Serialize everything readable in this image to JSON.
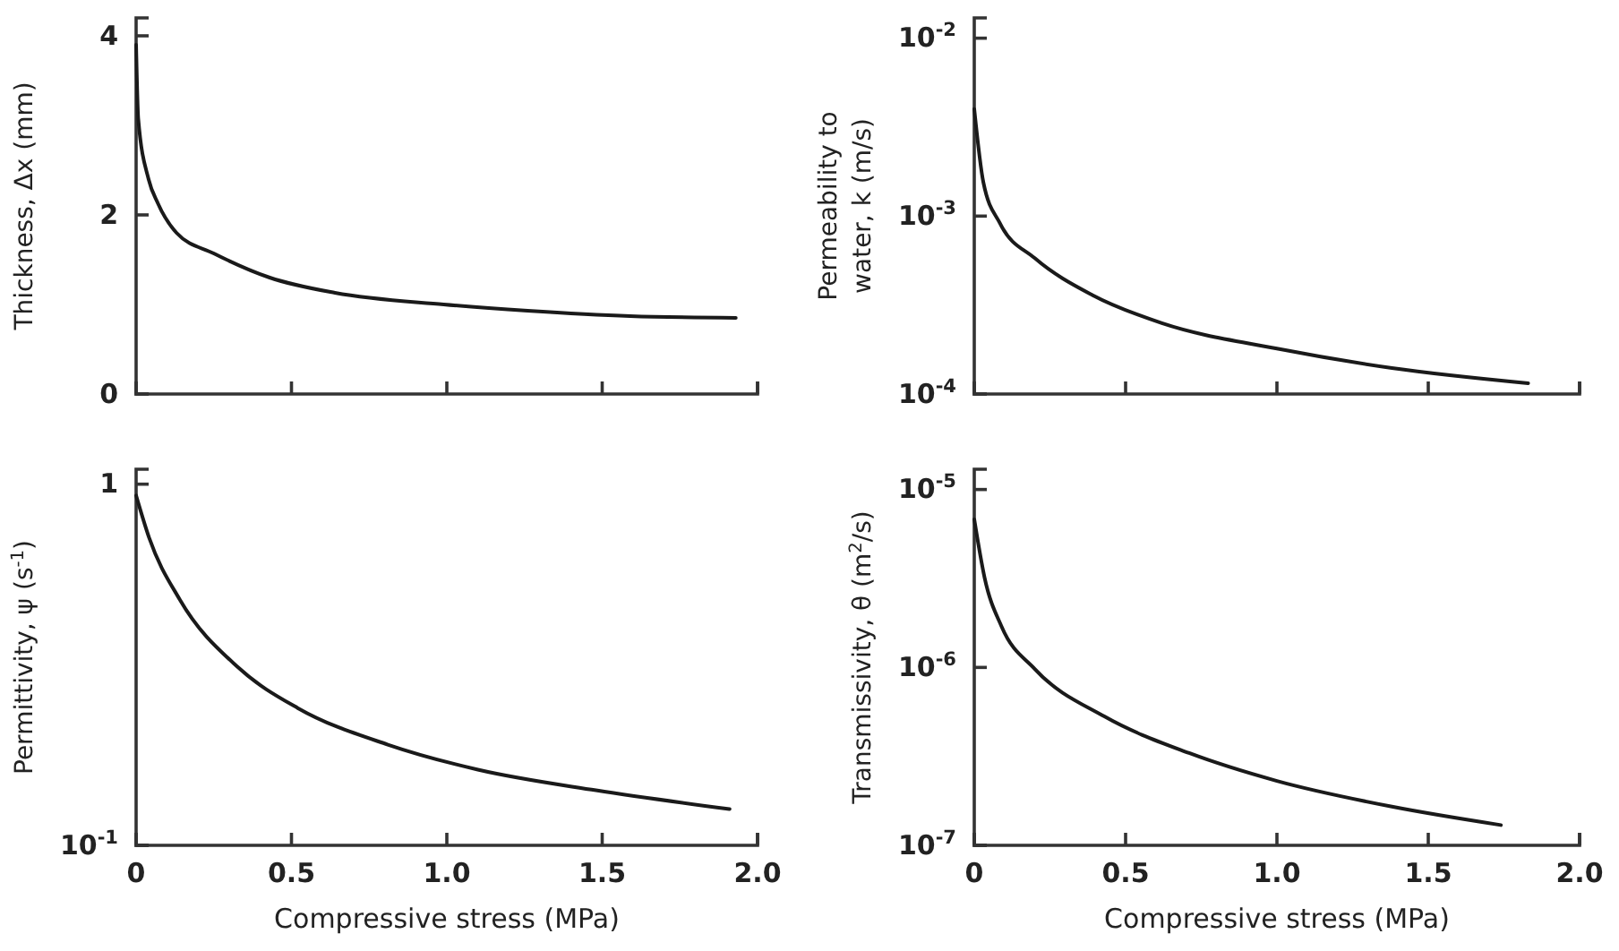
{
  "chart_data": [
    {
      "type": "line",
      "ylabel": "Thickness, Δx (mm)",
      "x": [
        0,
        0.007,
        0.04,
        0.07,
        0.13,
        0.25,
        0.43,
        0.64,
        0.99,
        1.26,
        1.59,
        1.93
      ],
      "series": [
        {
          "color": "#1a1a1a",
          "values": [
            3.9,
            3.07,
            2.4,
            2.13,
            1.8,
            1.57,
            1.3,
            1.13,
            1.0,
            0.93,
            0.87,
            0.85
          ]
        }
      ],
      "xlim": [
        0,
        2
      ],
      "xticks": [
        {
          "value": 0,
          "label": null
        },
        {
          "value": 0.5,
          "label": null
        },
        {
          "value": 1,
          "label": null
        },
        {
          "value": 1.5,
          "label": null
        },
        {
          "value": 2,
          "label": null
        }
      ],
      "ylim": [
        0,
        4.2
      ],
      "yticks": [
        0,
        2,
        4
      ],
      "tick_labels": "y"
    },
    {
      "type": "line",
      "ylabel": "Permeability to water, k (m/s)",
      "log": "y",
      "x": [
        0,
        0.03,
        0.085,
        0.2,
        0.39,
        0.62,
        1.0,
        1.38,
        1.83
      ],
      "series": [
        {
          "color": "#1a1a1a",
          "values": [
            0.004,
            0.00155,
            0.00091,
            0.00058,
            0.00036,
            0.00025,
            0.00018,
            0.00014,
            0.000115
          ]
        }
      ],
      "xlim": [
        0,
        2
      ],
      "xticks": [
        {
          "value": 0,
          "label": null
        },
        {
          "value": 0.5,
          "label": null
        },
        {
          "value": 1,
          "label": null
        },
        {
          "value": 1.5,
          "label": null
        },
        {
          "value": 2,
          "label": null
        }
      ],
      "ylim": [
        0.0001,
        0.013
      ],
      "yticks": [
        {
          "value": 0.0001,
          "label": "10$^{-4}$"
        },
        {
          "value": 0.001,
          "label": "10$^{-3}$"
        },
        {
          "value": 0.01,
          "label": "10$^{-2}$"
        }
      ],
      "tick_labels": "y"
    },
    {
      "type": "line",
      "ylabel": "Permittivity, ψ (s$^{-1}$)",
      "xlabel": "Compressive stress (MPa)",
      "log": "y",
      "x": [
        0,
        0.042,
        0.14,
        0.33,
        0.52,
        0.81,
        1.1,
        1.48,
        1.91
      ],
      "series": [
        {
          "color": "#1a1a1a",
          "values": [
            0.93,
            0.71,
            0.48,
            0.31,
            0.24,
            0.19,
            0.162,
            0.142,
            0.126
          ]
        }
      ],
      "xlim": [
        0,
        2
      ],
      "xticks": [
        0,
        0.5,
        {
          "value": 1,
          "label": "1.0"
        },
        1.5,
        {
          "value": 2,
          "label": "2.0"
        }
      ],
      "ylim": [
        0.1,
        1.1
      ],
      "yticks": [
        {
          "value": 0.1,
          "label": "10$^{-1}$"
        },
        1
      ]
    },
    {
      "type": "line",
      "ylabel": "Transmissivity, θ (m$^{2}$/s)",
      "xlabel": "Compressive stress (MPa)",
      "log": "y",
      "x": [
        0,
        0.034,
        0.09,
        0.2,
        0.43,
        0.71,
        1.0,
        1.38,
        1.74
      ],
      "series": [
        {
          "color": "#1a1a1a",
          "values": [
            6.8e-06,
            3.2e-06,
            1.7e-06,
            9.8e-07,
            5.3e-07,
            3.3e-07,
            2.3e-07,
            1.65e-07,
            1.3e-07
          ]
        }
      ],
      "xlim": [
        0,
        2
      ],
      "xticks": [
        0,
        0.5,
        {
          "value": 1,
          "label": "1.0"
        },
        1.5,
        {
          "value": 2,
          "label": "2.0"
        }
      ],
      "ylim": [
        1e-07,
        1.3e-05
      ],
      "yticks": [
        {
          "value": 1e-07,
          "label": "10$^{-7}$"
        },
        {
          "value": 1e-06,
          "label": "10$^{-6}$"
        },
        {
          "value": 1e-05,
          "label": "10$^{-5}$"
        }
      ]
    }
  ]
}
